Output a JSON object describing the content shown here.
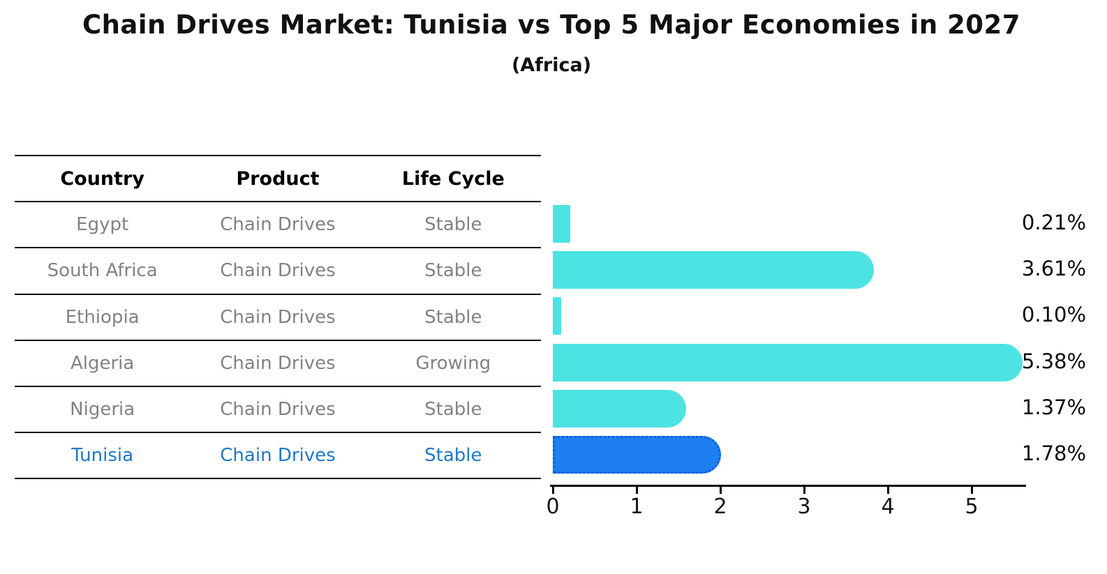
{
  "header": {
    "title": "Chain Drives Market: Tunisia vs Top 5 Major Economies in 2027",
    "subtitle": "(Africa)"
  },
  "table": {
    "headers": [
      "Country",
      "Product",
      "Life Cycle"
    ],
    "rows": [
      {
        "country": "Egypt",
        "product": "Chain Drives",
        "life_cycle": "Stable",
        "highlight": false
      },
      {
        "country": "South Africa",
        "product": "Chain Drives",
        "life_cycle": "Stable",
        "highlight": false
      },
      {
        "country": "Ethiopia",
        "product": "Chain Drives",
        "life_cycle": "Stable",
        "highlight": false
      },
      {
        "country": "Algeria",
        "product": "Chain Drives",
        "life_cycle": "Growing",
        "highlight": false
      },
      {
        "country": "Nigeria",
        "product": "Chain Drives",
        "life_cycle": "Stable",
        "highlight": false
      },
      {
        "country": "Tunisia",
        "product": "Chain Drives",
        "life_cycle": "Stable",
        "highlight": true
      }
    ],
    "row_text_color": "#828282",
    "highlight_text_color": "#1F78C9"
  },
  "chart_data": {
    "type": "bar",
    "orientation": "horizontal",
    "title": "Chain Drives Market: Tunisia vs Top 5 Major Economies in 2027",
    "subtitle": "(Africa)",
    "categories": [
      "Egypt",
      "South Africa",
      "Ethiopia",
      "Algeria",
      "Nigeria",
      "Tunisia"
    ],
    "values": [
      0.21,
      3.61,
      0.1,
      5.38,
      1.37,
      1.78
    ],
    "value_labels": [
      "0.21%",
      "3.61%",
      "0.10%",
      "5.38%",
      "1.37%",
      "1.78%"
    ],
    "x_ticks": [
      "0",
      "1",
      "2",
      "3",
      "4",
      "5"
    ],
    "xlim": [
      0,
      5.65
    ],
    "grid": false,
    "legend": "none",
    "highlight_index": 5,
    "bar_color": "#4DE3E3",
    "highlight_color": "#1E80F0",
    "highlight_border_color": "#0C5ED9"
  }
}
